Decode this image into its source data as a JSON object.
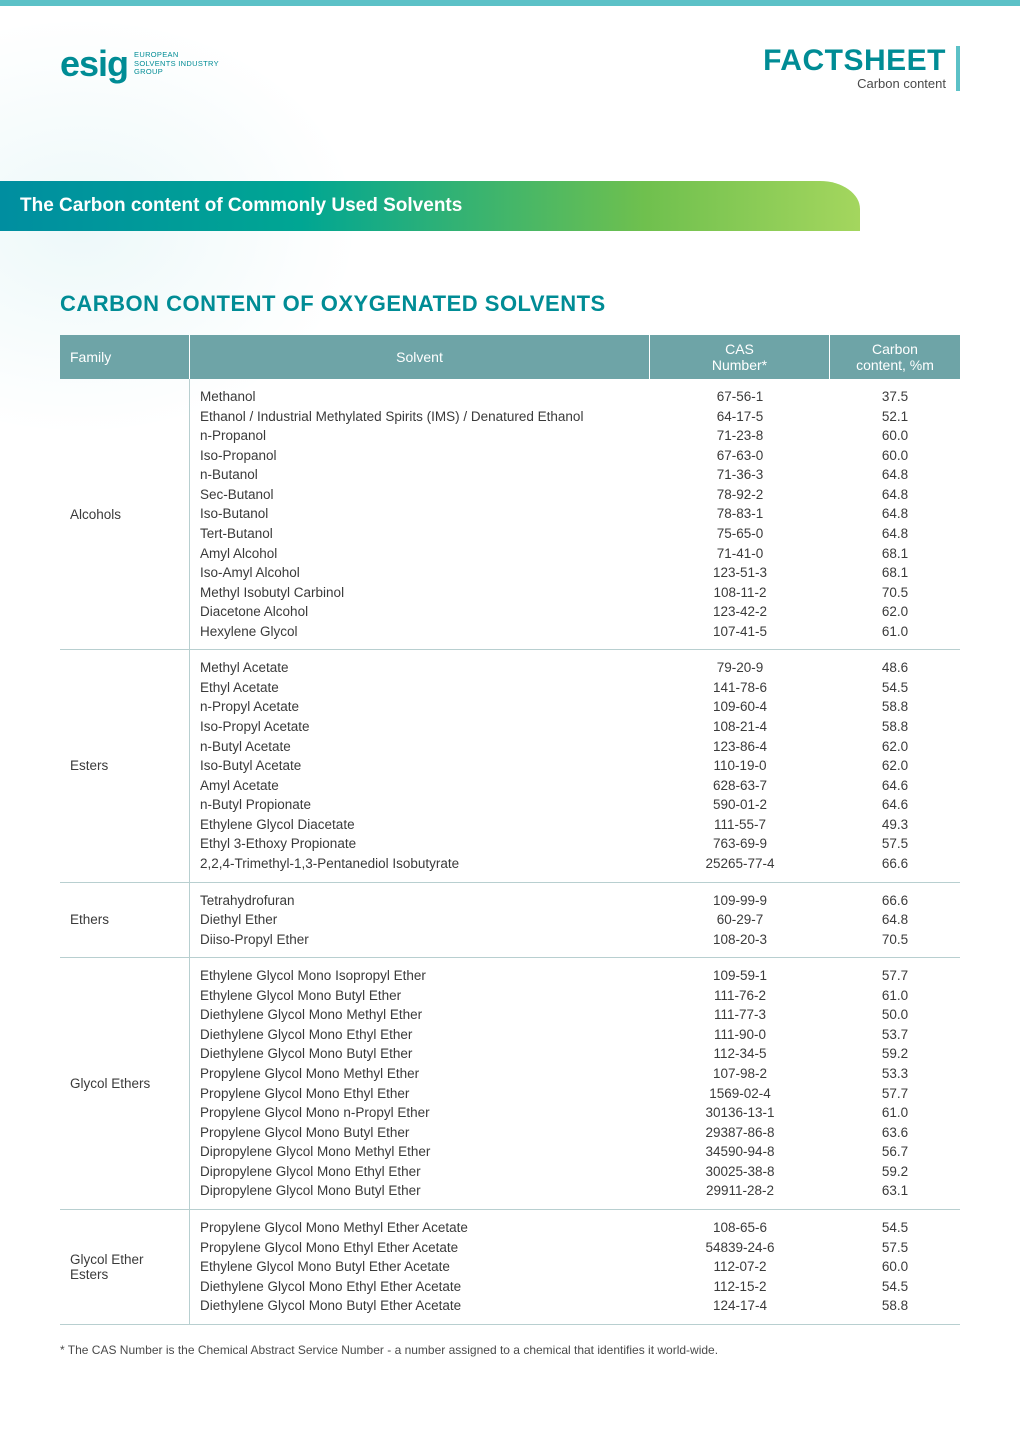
{
  "logo": {
    "mark": "esig",
    "line1": "EUROPEAN",
    "line2": "SOLVENTS INDUSTRY",
    "line3": "GROUP"
  },
  "factsheet": {
    "title": "FACTSHEET",
    "subtitle": "Carbon content"
  },
  "banner": "The Carbon content of Commonly Used Solvents",
  "section_title": "CARBON CONTENT OF OXYGENATED SOLVENTS",
  "columns": {
    "family": "Family",
    "solvent": "Solvent",
    "cas_l1": "CAS",
    "cas_l2": "Number*",
    "carbon_l1": "Carbon",
    "carbon_l2": "content, %m"
  },
  "groups": [
    {
      "family": "Alcohols",
      "rows": [
        {
          "solvent": "Methanol",
          "cas": "67-56-1",
          "carbon": "37.5"
        },
        {
          "solvent": "Ethanol / Industrial Methylated Spirits (IMS) / Denatured Ethanol",
          "cas": "64-17-5",
          "carbon": "52.1"
        },
        {
          "solvent": "n-Propanol",
          "cas": "71-23-8",
          "carbon": "60.0"
        },
        {
          "solvent": "Iso-Propanol",
          "cas": "67-63-0",
          "carbon": "60.0"
        },
        {
          "solvent": "n-Butanol",
          "cas": "71-36-3",
          "carbon": "64.8"
        },
        {
          "solvent": "Sec-Butanol",
          "cas": "78-92-2",
          "carbon": "64.8"
        },
        {
          "solvent": "Iso-Butanol",
          "cas": "78-83-1",
          "carbon": "64.8"
        },
        {
          "solvent": "Tert-Butanol",
          "cas": "75-65-0",
          "carbon": "64.8"
        },
        {
          "solvent": "Amyl Alcohol",
          "cas": "71-41-0",
          "carbon": "68.1"
        },
        {
          "solvent": "Iso-Amyl Alcohol",
          "cas": "123-51-3",
          "carbon": "68.1"
        },
        {
          "solvent": "Methyl Isobutyl Carbinol",
          "cas": "108-11-2",
          "carbon": "70.5"
        },
        {
          "solvent": "Diacetone Alcohol",
          "cas": "123-42-2",
          "carbon": "62.0"
        },
        {
          "solvent": "Hexylene Glycol",
          "cas": "107-41-5",
          "carbon": "61.0"
        }
      ]
    },
    {
      "family": "Esters",
      "rows": [
        {
          "solvent": "Methyl Acetate",
          "cas": "79-20-9",
          "carbon": "48.6"
        },
        {
          "solvent": "Ethyl Acetate",
          "cas": "141-78-6",
          "carbon": "54.5"
        },
        {
          "solvent": "n-Propyl Acetate",
          "cas": "109-60-4",
          "carbon": "58.8"
        },
        {
          "solvent": "Iso-Propyl Acetate",
          "cas": "108-21-4",
          "carbon": "58.8"
        },
        {
          "solvent": "n-Butyl Acetate",
          "cas": "123-86-4",
          "carbon": "62.0"
        },
        {
          "solvent": "Iso-Butyl Acetate",
          "cas": "110-19-0",
          "carbon": "62.0"
        },
        {
          "solvent": "Amyl Acetate",
          "cas": "628-63-7",
          "carbon": "64.6"
        },
        {
          "solvent": "n-Butyl Propionate",
          "cas": "590-01-2",
          "carbon": "64.6"
        },
        {
          "solvent": "Ethylene Glycol Diacetate",
          "cas": "111-55-7",
          "carbon": "49.3"
        },
        {
          "solvent": "Ethyl 3-Ethoxy Propionate",
          "cas": "763-69-9",
          "carbon": "57.5"
        },
        {
          "solvent": "2,2,4-Trimethyl-1,3-Pentanediol Isobutyrate",
          "cas": "25265-77-4",
          "carbon": "66.6"
        }
      ]
    },
    {
      "family": "Ethers",
      "rows": [
        {
          "solvent": "Tetrahydrofuran",
          "cas": "109-99-9",
          "carbon": "66.6"
        },
        {
          "solvent": "Diethyl Ether",
          "cas": "60-29-7",
          "carbon": "64.8"
        },
        {
          "solvent": "Diiso-Propyl Ether",
          "cas": "108-20-3",
          "carbon": "70.5"
        }
      ]
    },
    {
      "family": "Glycol Ethers",
      "rows": [
        {
          "solvent": "Ethylene Glycol Mono Isopropyl Ether",
          "cas": "109-59-1",
          "carbon": "57.7"
        },
        {
          "solvent": "Ethylene Glycol Mono Butyl Ether",
          "cas": "111-76-2",
          "carbon": "61.0"
        },
        {
          "solvent": "Diethylene Glycol Mono Methyl Ether",
          "cas": "111-77-3",
          "carbon": "50.0"
        },
        {
          "solvent": "Diethylene Glycol Mono Ethyl Ether",
          "cas": "111-90-0",
          "carbon": "53.7"
        },
        {
          "solvent": "Diethylene Glycol Mono Butyl Ether",
          "cas": "112-34-5",
          "carbon": "59.2"
        },
        {
          "solvent": "Propylene Glycol Mono Methyl Ether",
          "cas": "107-98-2",
          "carbon": "53.3"
        },
        {
          "solvent": "Propylene Glycol Mono Ethyl Ether",
          "cas": "1569-02-4",
          "carbon": "57.7"
        },
        {
          "solvent": "Propylene Glycol Mono n-Propyl Ether",
          "cas": "30136-13-1",
          "carbon": "61.0"
        },
        {
          "solvent": "Propylene Glycol Mono Butyl Ether",
          "cas": "29387-86-8",
          "carbon": "63.6"
        },
        {
          "solvent": "Dipropylene Glycol Mono Methyl Ether",
          "cas": "34590-94-8",
          "carbon": "56.7"
        },
        {
          "solvent": "Dipropylene Glycol Mono Ethyl Ether",
          "cas": "30025-38-8",
          "carbon": "59.2"
        },
        {
          "solvent": "Dipropylene Glycol Mono Butyl Ether",
          "cas": "29911-28-2",
          "carbon": "63.1"
        }
      ]
    },
    {
      "family": "Glycol Ether Esters",
      "rows": [
        {
          "solvent": "Propylene Glycol Mono Methyl Ether Acetate",
          "cas": "108-65-6",
          "carbon": "54.5"
        },
        {
          "solvent": "Propylene Glycol Mono Ethyl Ether Acetate",
          "cas": "54839-24-6",
          "carbon": "57.5"
        },
        {
          "solvent": "Ethylene Glycol Mono Butyl Ether Acetate",
          "cas": "112-07-2",
          "carbon": "60.0"
        },
        {
          "solvent": "Diethylene Glycol Mono Ethyl Ether Acetate",
          "cas": "112-15-2",
          "carbon": "54.5"
        },
        {
          "solvent": "Diethylene Glycol Mono Butyl Ether Acetate",
          "cas": "124-17-4",
          "carbon": "58.8"
        }
      ]
    }
  ],
  "footnote": "* The CAS Number is the Chemical Abstract Service Number - a number assigned to a chemical that identifies it world-wide.",
  "colors": {
    "teal": "#008c95",
    "header_bg": "#6ea4a7",
    "border": "#b8cfd0",
    "accent": "#5cc1c7"
  }
}
